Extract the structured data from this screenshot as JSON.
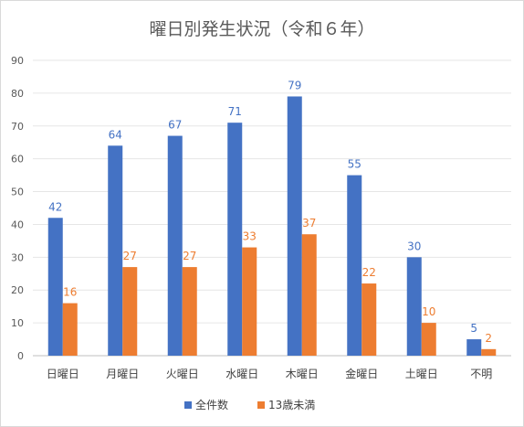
{
  "chart_data": {
    "type": "bar",
    "title": "曜日別発生状況（令和６年）",
    "categories": [
      "日曜日",
      "月曜日",
      "火曜日",
      "水曜日",
      "木曜日",
      "金曜日",
      "土曜日",
      "不明"
    ],
    "series": [
      {
        "name": "全件数",
        "values": [
          42,
          64,
          67,
          71,
          79,
          55,
          30,
          5
        ],
        "color": "#4472c4"
      },
      {
        "name": "13歳未満",
        "values": [
          16,
          27,
          27,
          33,
          37,
          22,
          10,
          2
        ],
        "color": "#ed7d31"
      }
    ],
    "ylim": [
      0,
      90
    ],
    "yticks": [
      0,
      10,
      20,
      30,
      40,
      50,
      60,
      70,
      80,
      90
    ],
    "grid": true,
    "legend": "bottom",
    "data_labels": true
  }
}
